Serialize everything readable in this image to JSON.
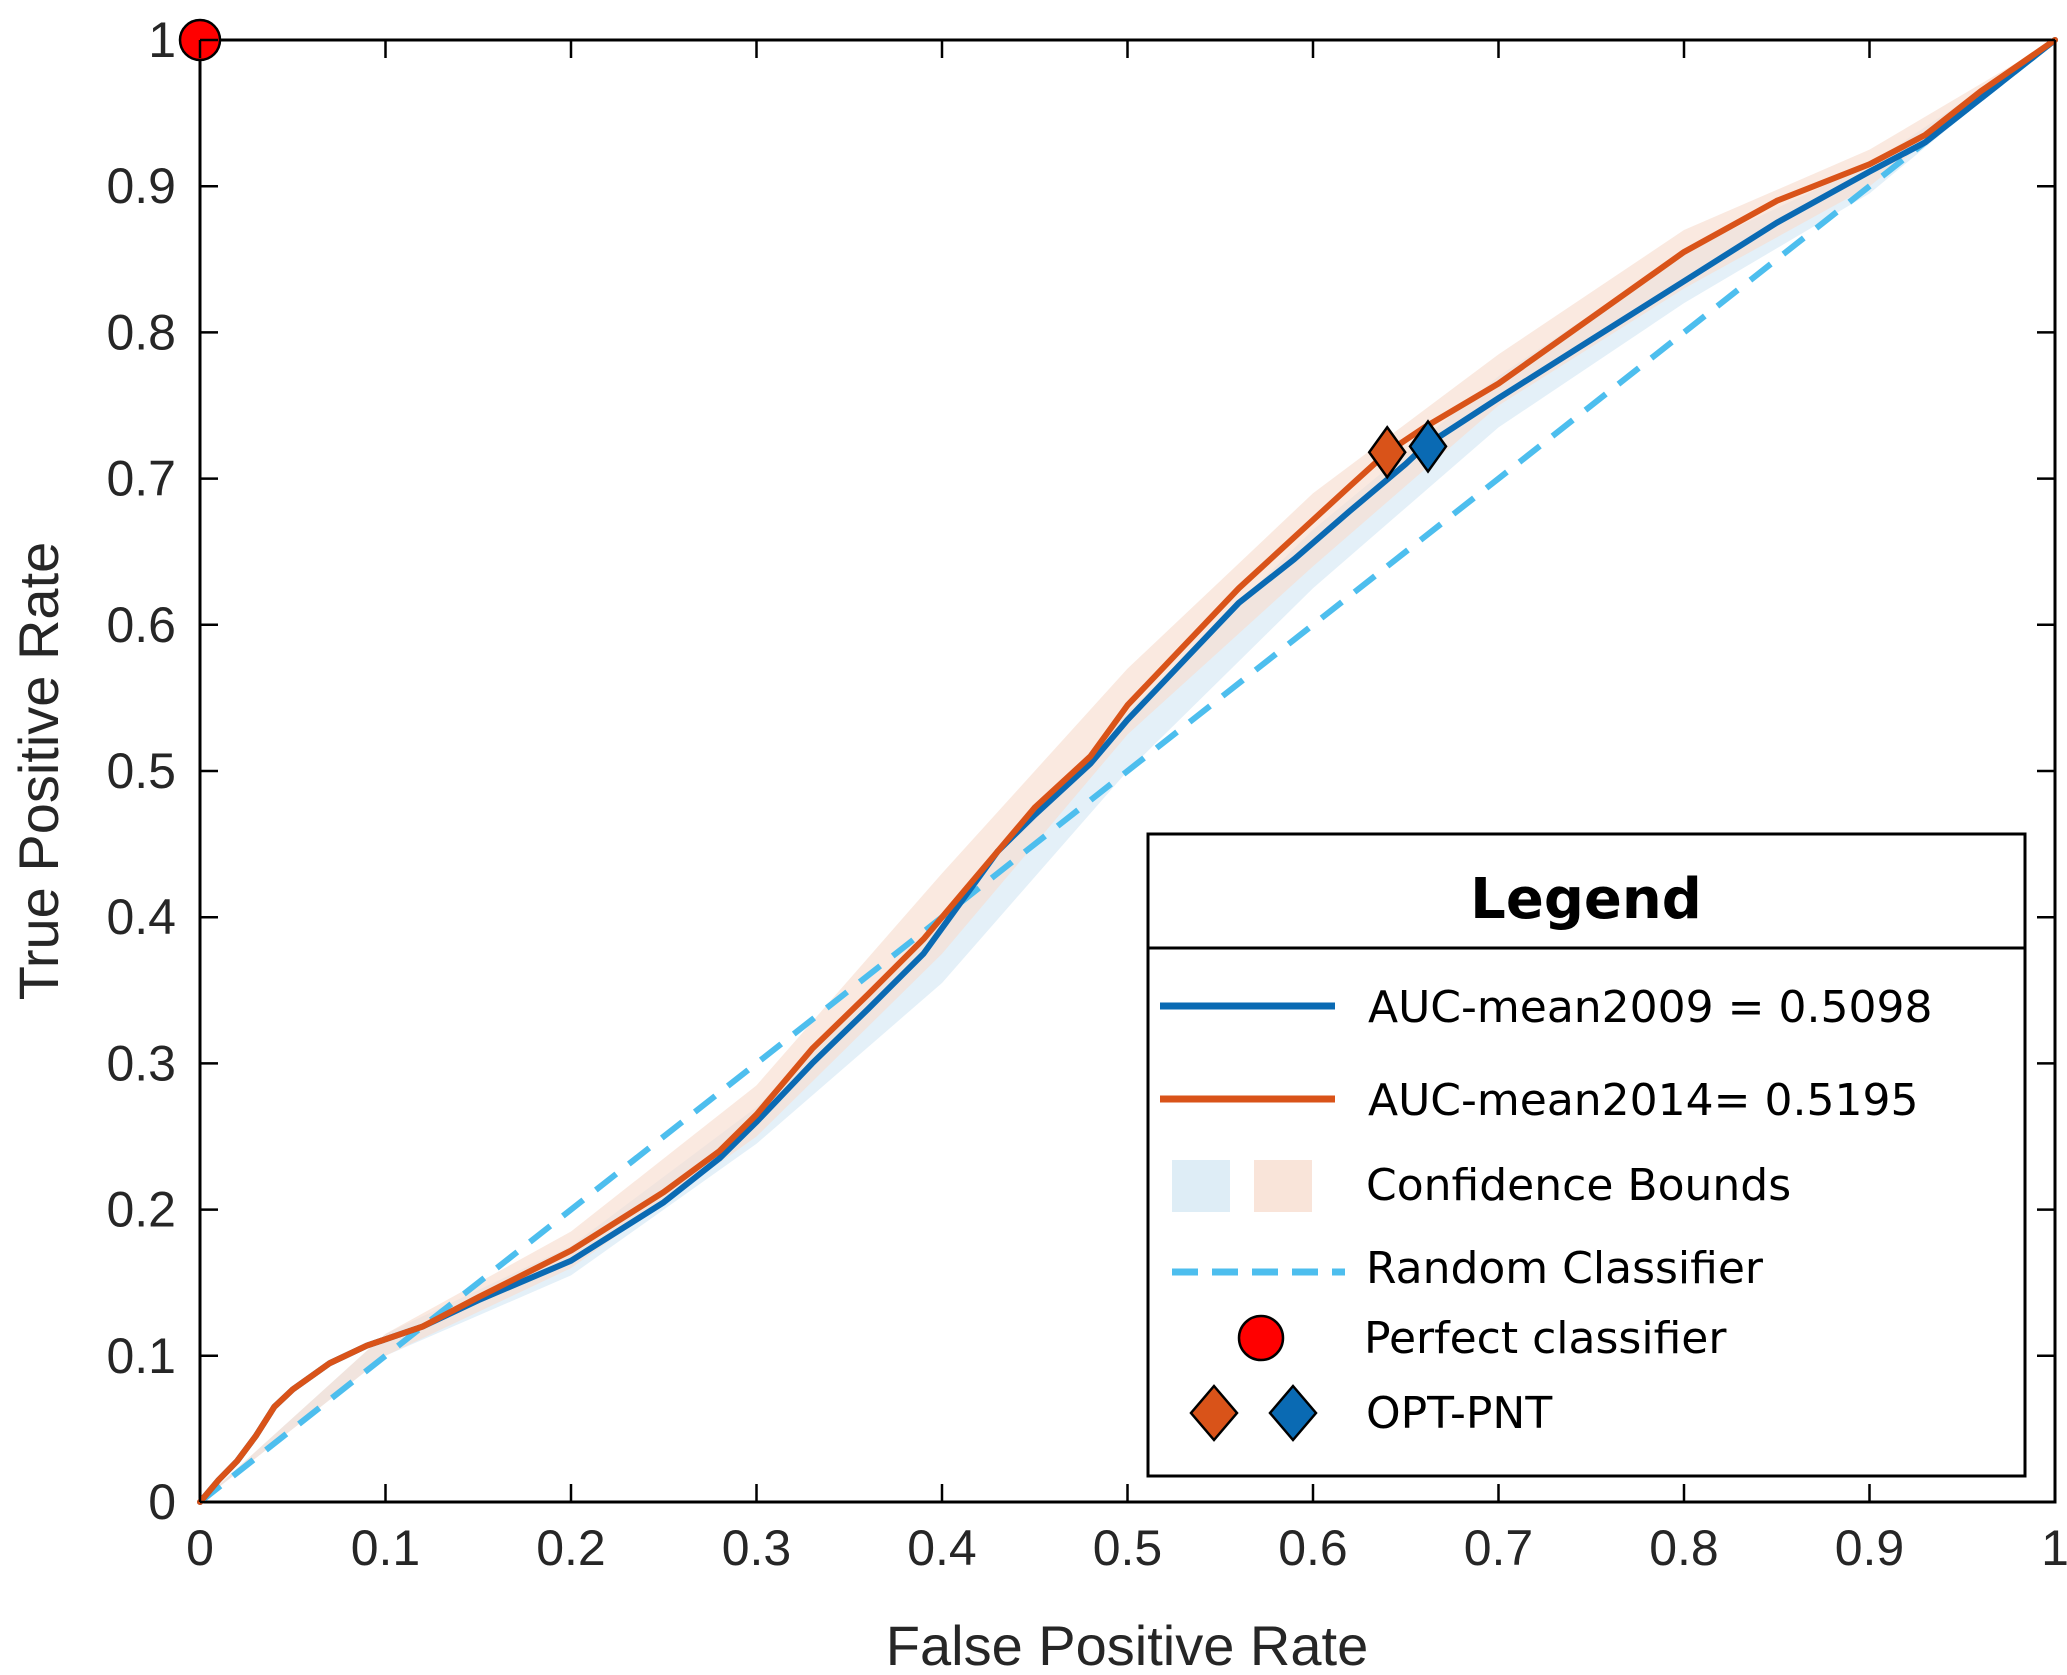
{
  "chart_data": {
    "type": "line",
    "title": "",
    "xlabel": "False Positive Rate",
    "ylabel": "True Positive Rate",
    "xlim": [
      0,
      1
    ],
    "ylim": [
      0,
      1
    ],
    "xticks": [
      "0",
      "0.1",
      "0.2",
      "0.3",
      "0.4",
      "0.5",
      "0.6",
      "0.7",
      "0.8",
      "0.9",
      "1"
    ],
    "yticks": [
      "0",
      "0.1",
      "0.2",
      "0.3",
      "0.4",
      "0.5",
      "0.6",
      "0.7",
      "0.8",
      "0.9",
      "1"
    ],
    "grid": false,
    "legend_position": "bottom-right",
    "colors": {
      "series_2009": "#0A6AB3",
      "series_2014": "#D95319",
      "band_2009": "#D6E8F4",
      "band_2014": "#F7DDD0",
      "random": "#4DBEEE",
      "perfect": "#FF0000"
    },
    "series": [
      {
        "name": "AUC-mean2009 = 0.5098",
        "x": [
          0,
          0.01,
          0.02,
          0.03,
          0.04,
          0.05,
          0.07,
          0.09,
          0.12,
          0.15,
          0.2,
          0.25,
          0.28,
          0.3,
          0.33,
          0.36,
          0.39,
          0.41,
          0.43,
          0.45,
          0.48,
          0.5,
          0.53,
          0.56,
          0.59,
          0.62,
          0.65,
          0.66,
          0.7,
          0.75,
          0.8,
          0.85,
          0.9,
          0.93,
          0.96,
          1
        ],
        "y": [
          0,
          0.015,
          0.028,
          0.045,
          0.065,
          0.077,
          0.095,
          0.107,
          0.12,
          0.138,
          0.165,
          0.205,
          0.235,
          0.26,
          0.3,
          0.337,
          0.375,
          0.41,
          0.445,
          0.47,
          0.505,
          0.535,
          0.575,
          0.615,
          0.645,
          0.678,
          0.71,
          0.722,
          0.755,
          0.795,
          0.835,
          0.875,
          0.91,
          0.93,
          0.96,
          1
        ]
      },
      {
        "name": "AUC-mean2014= 0.5195",
        "x": [
          0,
          0.01,
          0.02,
          0.03,
          0.04,
          0.05,
          0.07,
          0.09,
          0.12,
          0.15,
          0.2,
          0.25,
          0.28,
          0.3,
          0.33,
          0.36,
          0.39,
          0.41,
          0.43,
          0.45,
          0.48,
          0.5,
          0.53,
          0.56,
          0.59,
          0.62,
          0.64,
          0.66,
          0.7,
          0.75,
          0.8,
          0.85,
          0.9,
          0.93,
          0.96,
          1
        ],
        "y": [
          0,
          0.015,
          0.028,
          0.045,
          0.065,
          0.077,
          0.095,
          0.107,
          0.12,
          0.14,
          0.172,
          0.212,
          0.24,
          0.265,
          0.31,
          0.347,
          0.385,
          0.415,
          0.445,
          0.475,
          0.51,
          0.545,
          0.585,
          0.625,
          0.66,
          0.695,
          0.718,
          0.735,
          0.765,
          0.81,
          0.855,
          0.89,
          0.915,
          0.935,
          0.965,
          1
        ]
      }
    ],
    "confidence_bounds": {
      "label": "Confidence Bounds",
      "band_2009": {
        "x": [
          0,
          0.1,
          0.2,
          0.3,
          0.4,
          0.5,
          0.6,
          0.7,
          0.8,
          0.9,
          1
        ],
        "lower": [
          0,
          0.1,
          0.155,
          0.245,
          0.355,
          0.5,
          0.625,
          0.735,
          0.82,
          0.895,
          1
        ],
        "upper": [
          0,
          0.115,
          0.175,
          0.27,
          0.4,
          0.54,
          0.665,
          0.77,
          0.855,
          0.915,
          1
        ]
      },
      "band_2014": {
        "x": [
          0,
          0.1,
          0.2,
          0.3,
          0.4,
          0.5,
          0.6,
          0.7,
          0.8,
          0.9,
          1
        ],
        "lower": [
          0,
          0.1,
          0.16,
          0.25,
          0.375,
          0.525,
          0.64,
          0.75,
          0.83,
          0.9,
          1
        ],
        "upper": [
          0,
          0.115,
          0.185,
          0.285,
          0.43,
          0.57,
          0.69,
          0.785,
          0.87,
          0.925,
          1
        ]
      }
    },
    "random_classifier": {
      "name": "Random Classifier",
      "x": [
        0,
        1
      ],
      "y": [
        0,
        1
      ]
    },
    "perfect_classifier": {
      "name": "Perfect classifier",
      "x": 0,
      "y": 1
    },
    "opt_points": {
      "name": "OPT-PNT",
      "points": [
        {
          "series": "2014",
          "x": 0.64,
          "y": 0.718
        },
        {
          "series": "2009",
          "x": 0.662,
          "y": 0.722
        }
      ]
    }
  },
  "legend": {
    "title": "Legend",
    "items": {
      "auc_2009": "AUC-mean2009 = 0.5098",
      "auc_2014": "AUC-mean2014= 0.5195",
      "confidence": "Confidence Bounds",
      "random": "Random Classifier",
      "perfect": "Perfect classifier",
      "opt": "OPT-PNT"
    }
  }
}
